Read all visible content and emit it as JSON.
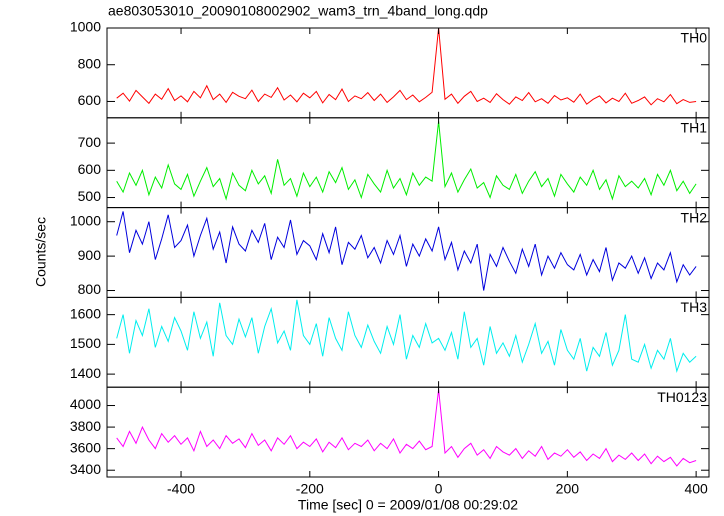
{
  "chart_data": {
    "type": "line",
    "title": "ae803053010_20090108002902_wam3_trn_4band_long.qdp",
    "x_label": "Time [sec] 0 = 2009/01/08 00:29:02",
    "y_label": "Counts/sec",
    "xlim": [
      -515,
      420
    ],
    "xticks": [
      -400,
      -200,
      0,
      200,
      400
    ],
    "x": [
      -500,
      -490,
      -480,
      -470,
      -460,
      -450,
      -440,
      -430,
      -420,
      -410,
      -400,
      -390,
      -380,
      -370,
      -360,
      -350,
      -340,
      -330,
      -320,
      -310,
      -300,
      -290,
      -280,
      -270,
      -260,
      -250,
      -240,
      -230,
      -220,
      -210,
      -200,
      -190,
      -180,
      -170,
      -160,
      -150,
      -140,
      -130,
      -120,
      -110,
      -100,
      -90,
      -80,
      -70,
      -60,
      -50,
      -40,
      -30,
      -20,
      -10,
      0,
      10,
      20,
      30,
      40,
      50,
      60,
      70,
      80,
      90,
      100,
      110,
      120,
      130,
      140,
      150,
      160,
      170,
      180,
      190,
      200,
      210,
      220,
      230,
      240,
      250,
      260,
      270,
      280,
      290,
      300,
      310,
      320,
      330,
      340,
      350,
      360,
      370,
      380,
      390,
      400
    ],
    "series": [
      {
        "name": "TH0",
        "color": "#ff0000",
        "ylim": [
          511,
          1000
        ],
        "yticks": [
          600,
          800,
          1000
        ],
        "values": [
          618,
          645,
          602,
          660,
          625,
          590,
          640,
          612,
          670,
          605,
          630,
          598,
          655,
          620,
          685,
          610,
          640,
          595,
          650,
          628,
          615,
          662,
          600,
          640,
          622,
          675,
          608,
          635,
          598,
          645,
          620,
          655,
          592,
          638,
          610,
          668,
          600,
          630,
          615,
          648,
          605,
          640,
          595,
          625,
          660,
          610,
          635,
          598,
          622,
          650,
          1000,
          612,
          640,
          590,
          628,
          655,
          600,
          618,
          595,
          642,
          610,
          585,
          625,
          605,
          648,
          598,
          615,
          590,
          632,
          608,
          620,
          596,
          640,
          585,
          612,
          630,
          592,
          618,
          600,
          645,
          590,
          605,
          625,
          582,
          615,
          598,
          638,
          588,
          610,
          595,
          600
        ]
      },
      {
        "name": "TH1",
        "color": "#00ee00",
        "ylim": [
          463,
          793
        ],
        "yticks": [
          500,
          600,
          700
        ],
        "values": [
          560,
          520,
          590,
          545,
          600,
          510,
          575,
          535,
          620,
          550,
          530,
          585,
          505,
          560,
          610,
          540,
          570,
          495,
          590,
          545,
          525,
          600,
          550,
          580,
          515,
          640,
          545,
          570,
          505,
          590,
          540,
          575,
          520,
          595,
          555,
          610,
          530,
          565,
          500,
          585,
          550,
          520,
          600,
          535,
          570,
          510,
          590,
          545,
          575,
          560,
          780,
          540,
          590,
          520,
          565,
          605,
          535,
          555,
          500,
          580,
          545,
          530,
          585,
          515,
          560,
          595,
          540,
          570,
          505,
          585,
          550,
          520,
          575,
          545,
          600,
          530,
          565,
          495,
          580,
          540,
          560,
          535,
          570,
          510,
          585,
          545,
          600,
          525,
          560,
          515,
          550
        ]
      },
      {
        "name": "TH2",
        "color": "#0000dd",
        "ylim": [
          780,
          1041
        ],
        "yticks": [
          800,
          900,
          1000
        ],
        "values": [
          960,
          1030,
          910,
          975,
          935,
          1000,
          890,
          950,
          1020,
          925,
          945,
          990,
          900,
          960,
          1010,
          920,
          970,
          880,
          985,
          935,
          915,
          975,
          940,
          995,
          890,
          955,
          925,
          1005,
          905,
          945,
          930,
          890,
          965,
          910,
          985,
          875,
          940,
          920,
          960,
          895,
          925,
          880,
          945,
          905,
          960,
          870,
          935,
          900,
          950,
          915,
          985,
          890,
          940,
          860,
          915,
          880,
          935,
          800,
          905,
          870,
          925,
          885,
          850,
          920,
          870,
          935,
          845,
          900,
          865,
          910,
          875,
          860,
          905,
          845,
          890,
          855,
          925,
          830,
          880,
          865,
          900,
          850,
          895,
          835,
          880,
          860,
          910,
          825,
          875,
          845,
          870
        ]
      },
      {
        "name": "TH3",
        "color": "#00eeee",
        "ylim": [
          1356,
          1658
        ],
        "yticks": [
          1400,
          1500,
          1600
        ],
        "values": [
          1520,
          1600,
          1470,
          1580,
          1530,
          1620,
          1490,
          1560,
          1510,
          1590,
          1545,
          1480,
          1610,
          1520,
          1575,
          1460,
          1640,
          1530,
          1500,
          1585,
          1525,
          1590,
          1470,
          1560,
          1620,
          1505,
          1545,
          1480,
          1650,
          1530,
          1500,
          1570,
          1460,
          1590,
          1520,
          1480,
          1610,
          1530,
          1490,
          1565,
          1510,
          1470,
          1560,
          1500,
          1600,
          1450,
          1530,
          1490,
          1570,
          1505,
          1520,
          1480,
          1540,
          1450,
          1610,
          1490,
          1520,
          1430,
          1560,
          1470,
          1505,
          1460,
          1530,
          1440,
          1500,
          1570,
          1470,
          1510,
          1430,
          1550,
          1480,
          1450,
          1520,
          1410,
          1490,
          1460,
          1540,
          1430,
          1480,
          1600,
          1450,
          1440,
          1500,
          1420,
          1480,
          1450,
          1520,
          1410,
          1470,
          1440,
          1460
        ]
      },
      {
        "name": "TH0123",
        "color": "#ff00ff",
        "ylim": [
          3337,
          4170
        ],
        "yticks": [
          3400,
          3600,
          3800,
          4000
        ],
        "values": [
          3700,
          3620,
          3760,
          3650,
          3800,
          3680,
          3600,
          3740,
          3660,
          3720,
          3640,
          3700,
          3580,
          3760,
          3620,
          3680,
          3600,
          3720,
          3650,
          3690,
          3610,
          3740,
          3630,
          3680,
          3580,
          3700,
          3640,
          3720,
          3600,
          3660,
          3620,
          3690,
          3570,
          3660,
          3610,
          3700,
          3590,
          3650,
          3620,
          3680,
          3580,
          3650,
          3600,
          3690,
          3560,
          3640,
          3600,
          3670,
          3590,
          3620,
          4150,
          3560,
          3620,
          3520,
          3600,
          3650,
          3540,
          3590,
          3510,
          3620,
          3570,
          3540,
          3600,
          3510,
          3580,
          3530,
          3620,
          3500,
          3560,
          3530,
          3590,
          3520,
          3570,
          3490,
          3550,
          3510,
          3600,
          3480,
          3540,
          3500,
          3560,
          3490,
          3550,
          3460,
          3530,
          3480,
          3520,
          3440,
          3510,
          3470,
          3490
        ]
      }
    ]
  }
}
